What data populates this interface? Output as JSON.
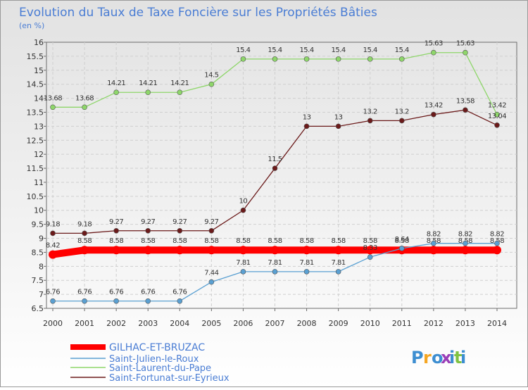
{
  "chart_data": {
    "type": "line",
    "title": "Evolution du Taux de Taxe Foncière sur les Propriétés Bâties",
    "ylabel": "(en %)",
    "xlabel": "",
    "ylim": [
      6.5,
      16
    ],
    "y_ticks": [
      {
        "value": 6.5,
        "label": "6.5"
      },
      {
        "value": 7,
        "label": "7"
      },
      {
        "value": 7.5,
        "label": "7.5"
      },
      {
        "value": 8,
        "label": "8"
      },
      {
        "value": 8.5,
        "label": "8.5"
      },
      {
        "value": 9,
        "label": "9"
      },
      {
        "value": 9.5,
        "label": "9.5"
      },
      {
        "value": 10,
        "label": "10"
      },
      {
        "value": 10.5,
        "label": "10.5"
      },
      {
        "value": 11,
        "label": "11"
      },
      {
        "value": 11.5,
        "label": "11.5"
      },
      {
        "value": 12,
        "label": "12"
      },
      {
        "value": 12.5,
        "label": "12.5"
      },
      {
        "value": 13,
        "label": "13"
      },
      {
        "value": 13.5,
        "label": "13.5"
      },
      {
        "value": 14,
        "label": "14"
      },
      {
        "value": 14.5,
        "label": "14.5"
      },
      {
        "value": 15,
        "label": "15"
      },
      {
        "value": 15.5,
        "label": "15.5"
      },
      {
        "value": 16,
        "label": "16"
      }
    ],
    "grid": true,
    "categories": [
      "2000",
      "2001",
      "2002",
      "2003",
      "2004",
      "2005",
      "2006",
      "2007",
      "2008",
      "2009",
      "2010",
      "2011",
      "2012",
      "2013",
      "2014"
    ],
    "series": [
      {
        "name": "GILHAC-ET-BRUZAC",
        "color": "#ff0000",
        "style": "thick",
        "values": [
          8.42,
          8.58,
          8.58,
          8.58,
          8.58,
          8.58,
          8.58,
          8.58,
          8.58,
          8.58,
          8.58,
          8.58,
          8.58,
          8.58,
          8.58
        ],
        "labels": [
          "8.42",
          "8.58",
          "8.58",
          "8.58",
          "8.58",
          "8.58",
          "8.58",
          "8.58",
          "8.58",
          "8.58",
          "8.58",
          "8.58",
          "8.58",
          "8.58",
          "8.58"
        ]
      },
      {
        "name": "Saint-Julien-le-Roux",
        "color": "#5aa0d2",
        "style": "thin",
        "values": [
          6.76,
          6.76,
          6.76,
          6.76,
          6.76,
          7.44,
          7.81,
          7.81,
          7.81,
          7.81,
          8.33,
          8.64,
          8.82,
          8.82,
          8.82
        ],
        "labels": [
          "6.76",
          "6.76",
          "6.76",
          "6.76",
          "6.76",
          "7.44",
          "7.81",
          "7.81",
          "7.81",
          "7.81",
          "8.33",
          "8.64",
          "8.82",
          "8.82",
          "8.82"
        ]
      },
      {
        "name": "Saint-Laurent-du-Pape",
        "color": "#8ed66a",
        "style": "thin",
        "values": [
          13.68,
          13.68,
          14.21,
          14.21,
          14.21,
          14.5,
          15.4,
          15.4,
          15.4,
          15.4,
          15.4,
          15.4,
          15.63,
          15.63,
          13.42
        ],
        "labels": [
          "13.68",
          "13.68",
          "14.21",
          "14.21",
          "14.21",
          "14.5",
          "15.4",
          "15.4",
          "15.4",
          "15.4",
          "15.4",
          "15.4",
          "15.63",
          "15.63",
          "13.42"
        ]
      },
      {
        "name": "Saint-Fortunat-sur-Eyrieux",
        "color": "#6b1a1a",
        "style": "thin",
        "values": [
          9.18,
          9.18,
          9.27,
          9.27,
          9.27,
          9.27,
          10,
          11.5,
          13,
          13,
          13.2,
          13.2,
          13.42,
          13.58,
          13.04
        ],
        "labels": [
          "9.18",
          "9.18",
          "9.27",
          "9.27",
          "9.27",
          "9.27",
          "10",
          "11.5",
          "13",
          "13",
          "13.2",
          "13.2",
          "13.42",
          "13.58",
          "13.04"
        ]
      }
    ],
    "legend_position": "bottom-left"
  },
  "logo": {
    "text": "Proxiti",
    "colors": [
      "#3d8ed1",
      "#f5a623",
      "#3d8ed1",
      "#9b3fb8",
      "#3d8ed1",
      "#7fc241",
      "#3d8ed1"
    ]
  }
}
